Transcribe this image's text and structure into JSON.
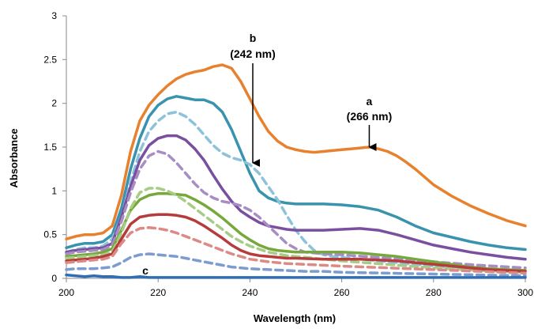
{
  "chart_data": {
    "type": "line",
    "title": "",
    "xlabel": "Wavelength (nm)",
    "ylabel": "Absorbance",
    "xlim": [
      200,
      300
    ],
    "ylim": [
      0,
      3
    ],
    "xticks": [
      "200",
      "220",
      "240",
      "260",
      "280",
      "300"
    ],
    "yticks": [
      "0",
      "0.5",
      "1",
      "1.5",
      "2",
      "2.5",
      "3"
    ],
    "grid": false,
    "legend": "none",
    "series": [
      {
        "color": "#E8812E",
        "dash": false,
        "x": [
          200,
          202,
          204,
          206,
          208,
          210,
          212,
          214,
          216,
          218,
          220,
          222,
          224,
          226,
          228,
          230,
          232,
          234,
          236,
          238,
          240,
          242,
          244,
          246,
          248,
          250,
          252,
          254,
          256,
          258,
          260,
          262,
          264,
          266,
          268,
          270,
          272,
          274,
          276,
          278,
          280,
          284,
          288,
          292,
          296,
          300
        ],
        "y": [
          0.45,
          0.48,
          0.5,
          0.5,
          0.52,
          0.6,
          0.95,
          1.45,
          1.8,
          1.98,
          2.1,
          2.2,
          2.28,
          2.33,
          2.36,
          2.38,
          2.42,
          2.44,
          2.4,
          2.25,
          2.05,
          1.85,
          1.68,
          1.57,
          1.5,
          1.47,
          1.45,
          1.44,
          1.45,
          1.46,
          1.47,
          1.48,
          1.49,
          1.5,
          1.48,
          1.45,
          1.4,
          1.33,
          1.25,
          1.16,
          1.07,
          0.94,
          0.83,
          0.74,
          0.66,
          0.6
        ]
      },
      {
        "color": "#3A93AE",
        "dash": false,
        "x": [
          200,
          202,
          204,
          206,
          208,
          210,
          212,
          214,
          216,
          218,
          220,
          222,
          224,
          226,
          228,
          230,
          232,
          234,
          236,
          238,
          240,
          242,
          244,
          246,
          248,
          250,
          252,
          256,
          260,
          264,
          268,
          272,
          276,
          280,
          284,
          288,
          292,
          296,
          300
        ],
        "y": [
          0.35,
          0.38,
          0.4,
          0.4,
          0.42,
          0.5,
          0.8,
          1.25,
          1.6,
          1.85,
          1.98,
          2.05,
          2.08,
          2.06,
          2.04,
          2.04,
          2.0,
          1.9,
          1.7,
          1.45,
          1.2,
          1.0,
          0.92,
          0.88,
          0.86,
          0.85,
          0.85,
          0.85,
          0.84,
          0.82,
          0.78,
          0.7,
          0.6,
          0.52,
          0.47,
          0.42,
          0.38,
          0.35,
          0.33
        ]
      },
      {
        "color": "#8DC3DA",
        "dash": true,
        "x": [
          200,
          202,
          204,
          206,
          208,
          210,
          212,
          214,
          216,
          218,
          220,
          222,
          224,
          226,
          228,
          230,
          232,
          234,
          236,
          238,
          240,
          242,
          244,
          246,
          248,
          250,
          252,
          254,
          256,
          258,
          260,
          264,
          268,
          272,
          276,
          280,
          290,
          300
        ],
        "y": [
          0.3,
          0.33,
          0.35,
          0.35,
          0.37,
          0.45,
          0.7,
          1.1,
          1.45,
          1.68,
          1.8,
          1.88,
          1.9,
          1.85,
          1.76,
          1.64,
          1.52,
          1.43,
          1.38,
          1.35,
          1.3,
          1.2,
          1.05,
          0.9,
          0.72,
          0.55,
          0.42,
          0.32,
          0.27,
          0.25,
          0.24,
          0.22,
          0.2,
          0.18,
          0.16,
          0.14,
          0.11,
          0.09
        ]
      },
      {
        "color": "#7A4FA0",
        "dash": false,
        "x": [
          200,
          202,
          204,
          206,
          208,
          210,
          212,
          214,
          216,
          218,
          220,
          222,
          224,
          226,
          228,
          230,
          232,
          234,
          236,
          238,
          240,
          242,
          244,
          246,
          248,
          250,
          252,
          256,
          260,
          264,
          268,
          272,
          276,
          280,
          284,
          288,
          292,
          296,
          300
        ],
        "y": [
          0.3,
          0.32,
          0.33,
          0.34,
          0.35,
          0.4,
          0.7,
          1.05,
          1.35,
          1.52,
          1.6,
          1.63,
          1.63,
          1.58,
          1.48,
          1.35,
          1.18,
          1.02,
          0.88,
          0.77,
          0.7,
          0.64,
          0.6,
          0.58,
          0.56,
          0.55,
          0.55,
          0.55,
          0.56,
          0.57,
          0.55,
          0.5,
          0.44,
          0.38,
          0.34,
          0.3,
          0.27,
          0.24,
          0.22
        ]
      },
      {
        "color": "#A88DC4",
        "dash": true,
        "x": [
          200,
          202,
          204,
          206,
          208,
          210,
          212,
          214,
          216,
          218,
          220,
          222,
          224,
          226,
          228,
          230,
          232,
          234,
          236,
          238,
          240,
          242,
          244,
          246,
          248,
          250,
          252,
          256,
          260,
          270,
          280,
          290,
          300
        ],
        "y": [
          0.28,
          0.3,
          0.31,
          0.32,
          0.33,
          0.38,
          0.65,
          0.98,
          1.25,
          1.4,
          1.45,
          1.42,
          1.32,
          1.2,
          1.08,
          0.98,
          0.92,
          0.88,
          0.86,
          0.83,
          0.78,
          0.7,
          0.6,
          0.5,
          0.4,
          0.34,
          0.3,
          0.28,
          0.27,
          0.23,
          0.19,
          0.15,
          0.12
        ]
      },
      {
        "color": "#76A83C",
        "dash": false,
        "x": [
          200,
          202,
          204,
          206,
          208,
          210,
          212,
          214,
          216,
          218,
          220,
          222,
          224,
          226,
          228,
          230,
          232,
          234,
          236,
          238,
          240,
          242,
          244,
          246,
          248,
          250,
          252,
          256,
          260,
          264,
          268,
          272,
          276,
          280,
          284,
          288,
          292,
          296,
          300
        ],
        "y": [
          0.25,
          0.26,
          0.27,
          0.28,
          0.3,
          0.34,
          0.55,
          0.78,
          0.9,
          0.95,
          0.97,
          0.97,
          0.96,
          0.95,
          0.9,
          0.84,
          0.77,
          0.69,
          0.6,
          0.51,
          0.44,
          0.38,
          0.34,
          0.32,
          0.31,
          0.3,
          0.3,
          0.3,
          0.3,
          0.29,
          0.27,
          0.25,
          0.22,
          0.19,
          0.16,
          0.13,
          0.11,
          0.1,
          0.09
        ]
      },
      {
        "color": "#A7CC85",
        "dash": true,
        "x": [
          200,
          202,
          204,
          206,
          208,
          210,
          212,
          214,
          216,
          218,
          220,
          222,
          224,
          226,
          228,
          230,
          232,
          234,
          236,
          238,
          240,
          244,
          248,
          252,
          256,
          260,
          270,
          280,
          290,
          300
        ],
        "y": [
          0.23,
          0.24,
          0.25,
          0.26,
          0.27,
          0.3,
          0.52,
          0.8,
          0.98,
          1.03,
          1.03,
          1.0,
          0.95,
          0.88,
          0.8,
          0.72,
          0.64,
          0.56,
          0.48,
          0.42,
          0.37,
          0.3,
          0.26,
          0.24,
          0.22,
          0.2,
          0.16,
          0.12,
          0.09,
          0.07
        ]
      },
      {
        "color": "#B63B3B",
        "dash": false,
        "x": [
          200,
          202,
          204,
          206,
          208,
          210,
          212,
          214,
          216,
          218,
          220,
          222,
          224,
          226,
          228,
          230,
          232,
          234,
          236,
          238,
          240,
          242,
          244,
          246,
          248,
          250,
          256,
          260,
          264,
          268,
          272,
          276,
          280,
          284,
          288,
          292,
          296,
          300
        ],
        "y": [
          0.2,
          0.21,
          0.22,
          0.23,
          0.25,
          0.28,
          0.45,
          0.62,
          0.7,
          0.72,
          0.73,
          0.73,
          0.72,
          0.7,
          0.66,
          0.6,
          0.53,
          0.46,
          0.38,
          0.32,
          0.28,
          0.26,
          0.25,
          0.24,
          0.23,
          0.23,
          0.22,
          0.22,
          0.22,
          0.21,
          0.2,
          0.18,
          0.16,
          0.14,
          0.12,
          0.1,
          0.09,
          0.08
        ]
      },
      {
        "color": "#DB8A86",
        "dash": true,
        "x": [
          200,
          202,
          204,
          206,
          208,
          210,
          212,
          214,
          216,
          218,
          220,
          222,
          224,
          226,
          228,
          230,
          232,
          234,
          236,
          238,
          240,
          244,
          248,
          252,
          256,
          260,
          270,
          280,
          290,
          300
        ],
        "y": [
          0.18,
          0.19,
          0.2,
          0.21,
          0.22,
          0.25,
          0.4,
          0.52,
          0.57,
          0.58,
          0.57,
          0.55,
          0.52,
          0.48,
          0.44,
          0.4,
          0.36,
          0.32,
          0.28,
          0.25,
          0.22,
          0.19,
          0.17,
          0.16,
          0.15,
          0.14,
          0.12,
          0.1,
          0.08,
          0.06
        ]
      },
      {
        "color": "#7C9CD0",
        "dash": true,
        "x": [
          200,
          202,
          204,
          206,
          208,
          210,
          212,
          214,
          216,
          218,
          220,
          222,
          224,
          226,
          228,
          230,
          232,
          234,
          236,
          240,
          244,
          248,
          252,
          256,
          260,
          270,
          280,
          290,
          300
        ],
        "y": [
          0.1,
          0.11,
          0.11,
          0.11,
          0.12,
          0.13,
          0.18,
          0.24,
          0.27,
          0.28,
          0.27,
          0.26,
          0.25,
          0.23,
          0.21,
          0.19,
          0.17,
          0.15,
          0.13,
          0.11,
          0.1,
          0.09,
          0.08,
          0.08,
          0.07,
          0.06,
          0.05,
          0.04,
          0.03
        ]
      },
      {
        "color": "#2F6DB4",
        "dash": false,
        "x": [
          200,
          202,
          204,
          206,
          208,
          210,
          212,
          214,
          216,
          218,
          220,
          240,
          260,
          280,
          300
        ],
        "y": [
          0.04,
          0.03,
          0.02,
          0.03,
          0.02,
          0.02,
          0.01,
          0.01,
          0.02,
          0.01,
          0.01,
          0.01,
          0.01,
          0.01,
          0.01
        ]
      }
    ],
    "annotations": [
      {
        "label": "a",
        "sublabel": "(266 nm)",
        "x": 266
      },
      {
        "label": "b",
        "sublabel": "(242 nm)",
        "x": 242
      },
      {
        "label": "c",
        "sublabel": "",
        "x": 220
      }
    ]
  }
}
